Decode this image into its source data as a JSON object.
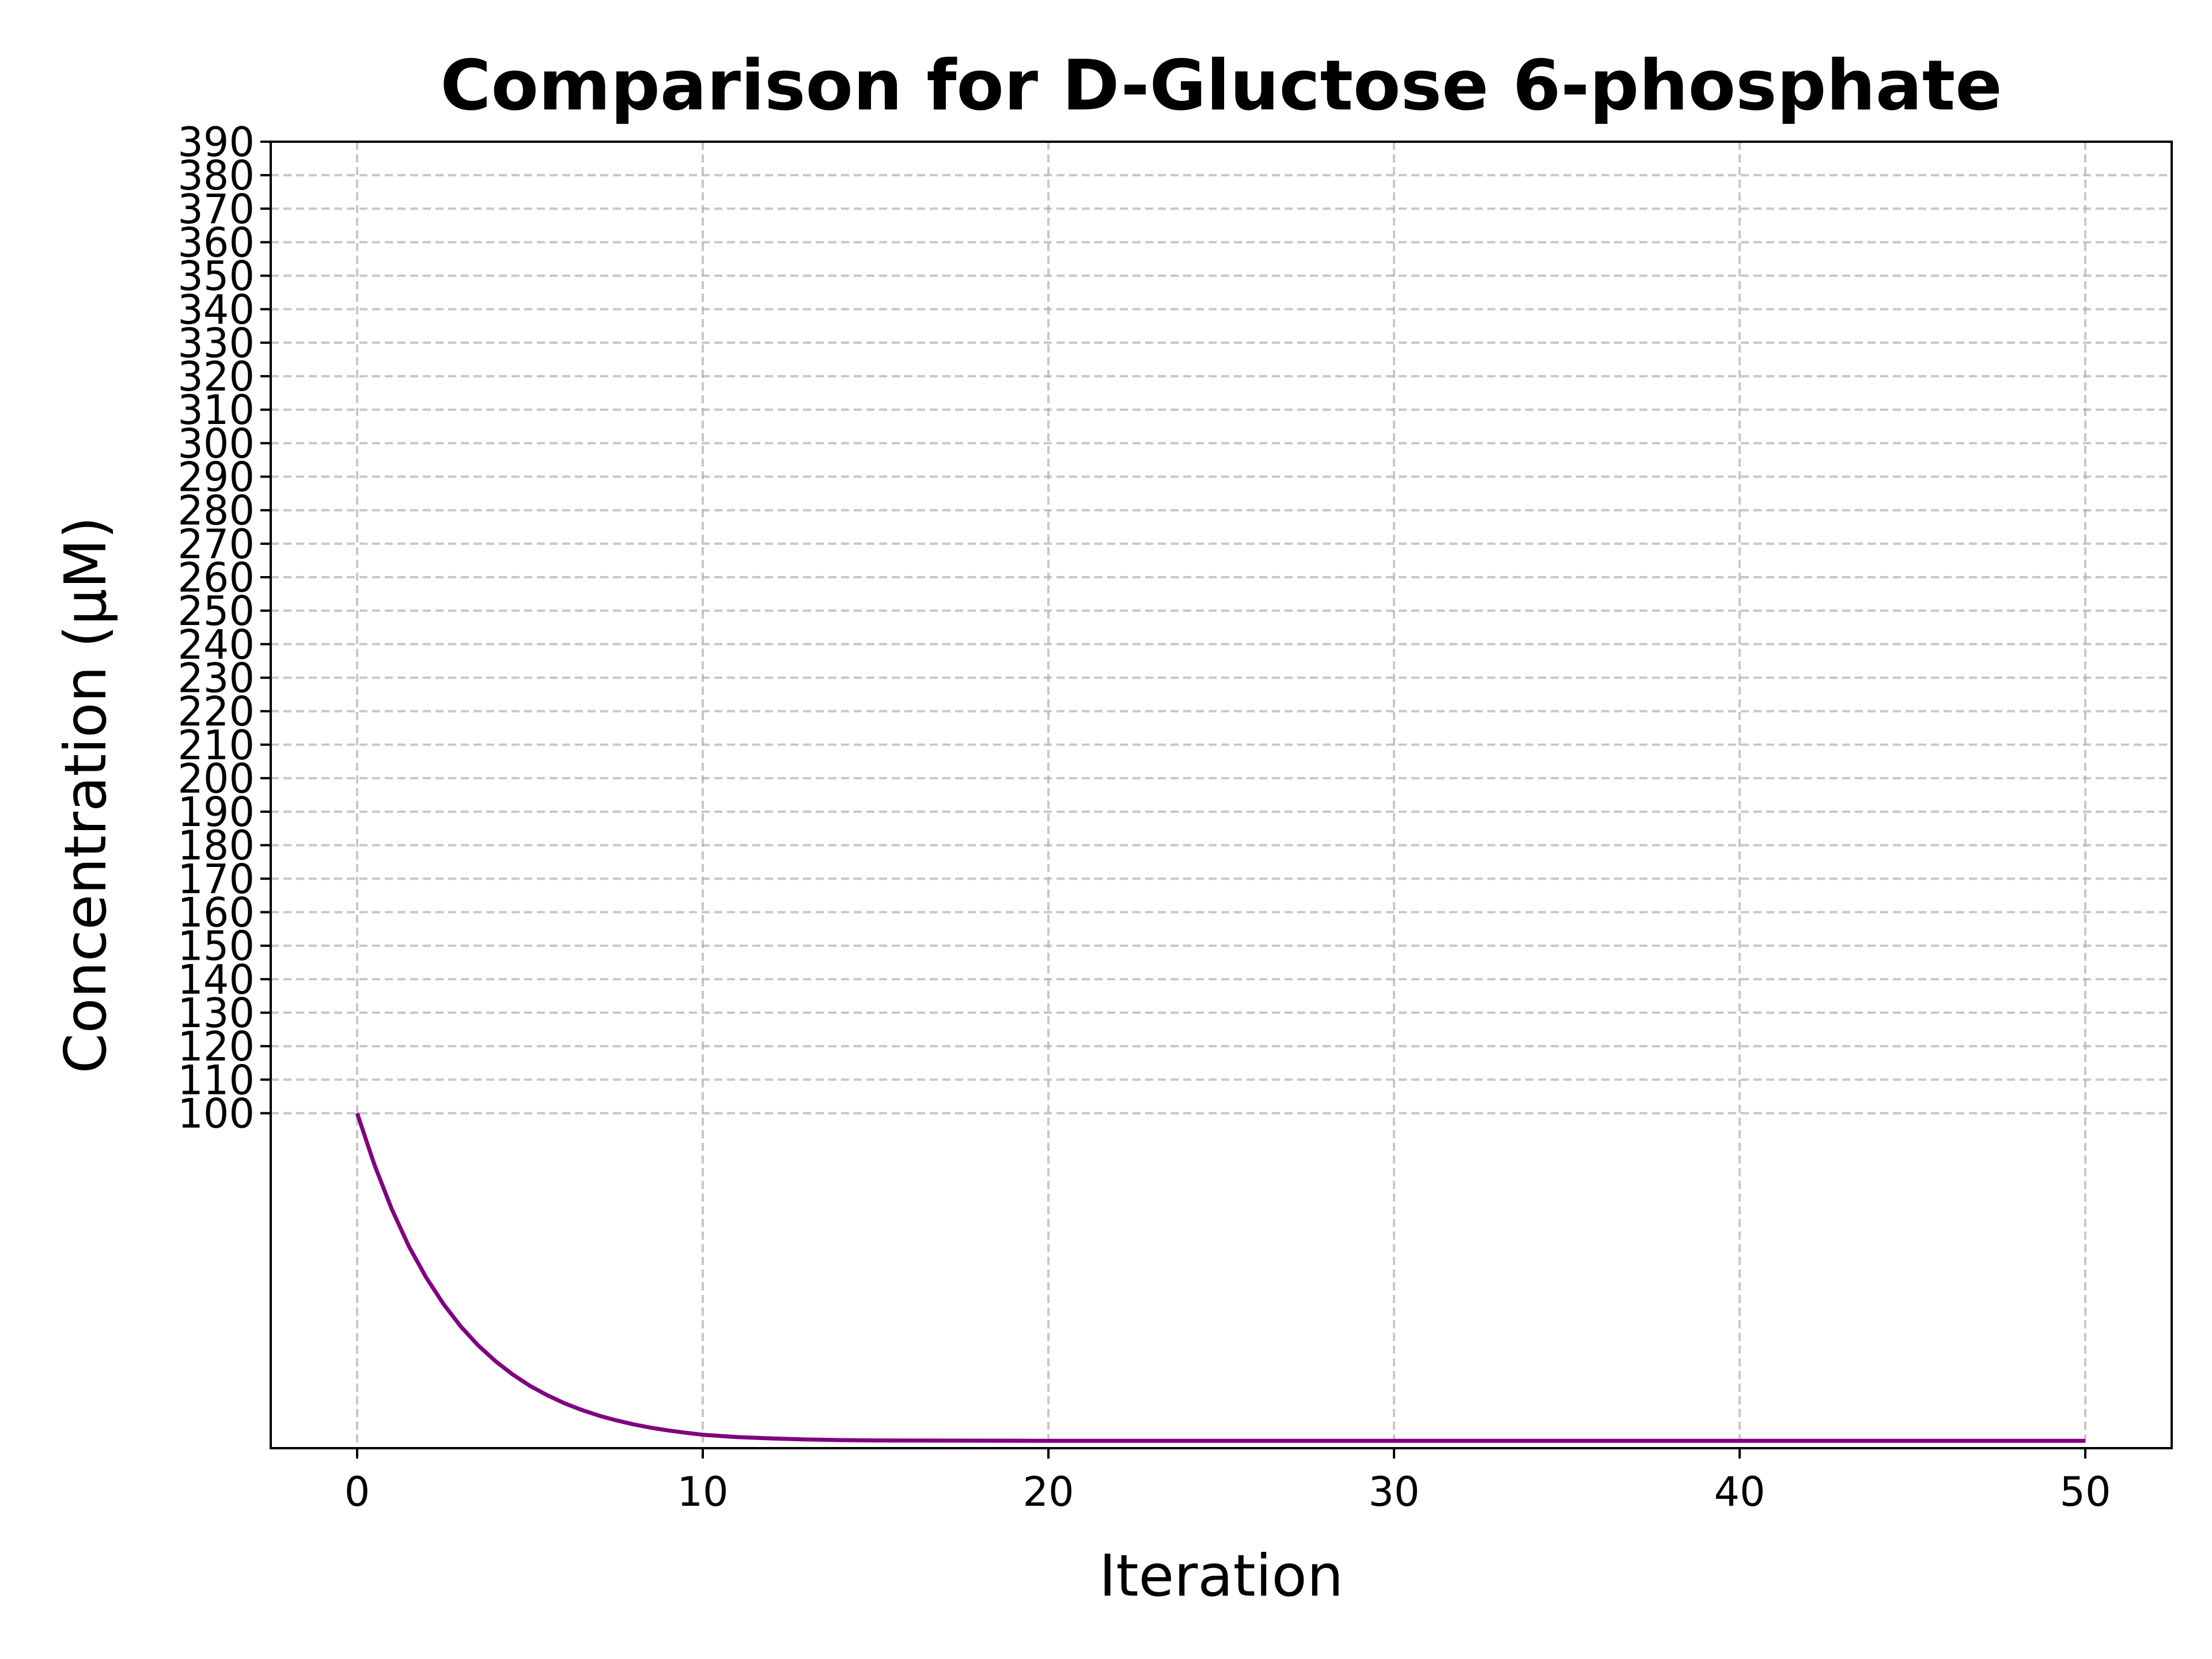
{
  "chart_data": {
    "type": "line",
    "title": "Comparison for D-Gluctose 6-phosphate",
    "xlabel": "Iteration",
    "ylabel": "Concentration (μM)",
    "xlim": [
      -2.5,
      52.5
    ],
    "ylim": [
      0,
      390
    ],
    "x_ticks": [
      0,
      10,
      20,
      30,
      40,
      50
    ],
    "y_ticks": [
      100,
      110,
      120,
      130,
      140,
      150,
      160,
      170,
      180,
      190,
      200,
      210,
      220,
      230,
      240,
      250,
      260,
      270,
      280,
      290,
      300,
      310,
      320,
      330,
      340,
      350,
      360,
      370,
      380,
      390
    ],
    "grid": true,
    "series_color": "#800080",
    "x": [
      0,
      0.5,
      1,
      1.5,
      2,
      2.5,
      3,
      3.5,
      4,
      4.5,
      5,
      5.5,
      6,
      6.5,
      7,
      7.5,
      8,
      8.5,
      9,
      9.5,
      10,
      11,
      12,
      13,
      14,
      15,
      20,
      25,
      30,
      35,
      40,
      45,
      50
    ],
    "values": [
      100,
      84.6,
      71.4,
      60.2,
      50.9,
      43.0,
      36.3,
      30.7,
      26.0,
      22.0,
      18.6,
      15.8,
      13.4,
      11.4,
      9.7,
      8.3,
      7.1,
      6.1,
      5.3,
      4.6,
      4.0,
      3.3,
      2.9,
      2.6,
      2.4,
      2.3,
      2.2,
      2.2,
      2.2,
      2.2,
      2.2,
      2.2,
      2.2
    ]
  }
}
